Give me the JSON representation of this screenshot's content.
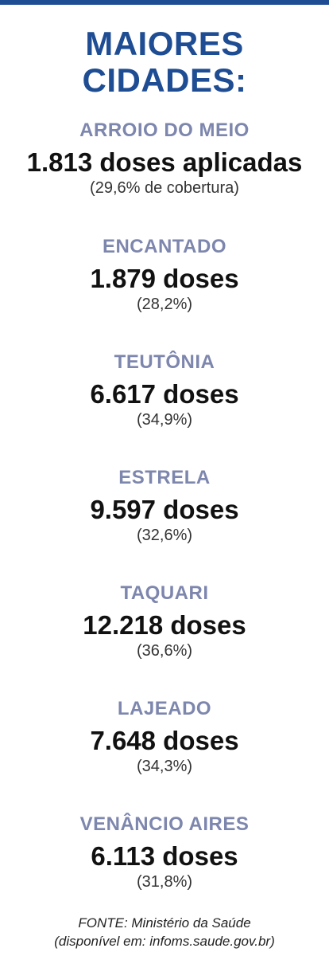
{
  "headline": {
    "line1": "MAIORES",
    "line2": "CIDADES:"
  },
  "cities": [
    {
      "name": "ARROIO DO MEIO",
      "doses": "1.813 doses aplicadas",
      "coverage": "(29,6% de cobertura)"
    },
    {
      "name": "ENCANTADO",
      "doses": "1.879 doses",
      "coverage": "(28,2%)"
    },
    {
      "name": "TEUTÔNIA",
      "doses": "6.617 doses",
      "coverage": "(34,9%)"
    },
    {
      "name": "ESTRELA",
      "doses": "9.597 doses",
      "coverage": "(32,6%)"
    },
    {
      "name": "TAQUARI",
      "doses": "12.218 doses",
      "coverage": "(36,6%)"
    },
    {
      "name": "LAJEADO",
      "doses": "7.648 doses",
      "coverage": "(34,3%)"
    },
    {
      "name": "VENÂNCIO AIRES",
      "doses": "6.113 doses",
      "coverage": "(31,8%)"
    }
  ],
  "source": {
    "line1": "FONTE: Ministério da Saúde",
    "line2": "(disponível em: infoms.saude.gov.br)"
  },
  "colors": {
    "headline": "#1f4d93",
    "city_name": "#7d86ad",
    "doses": "#111111"
  }
}
